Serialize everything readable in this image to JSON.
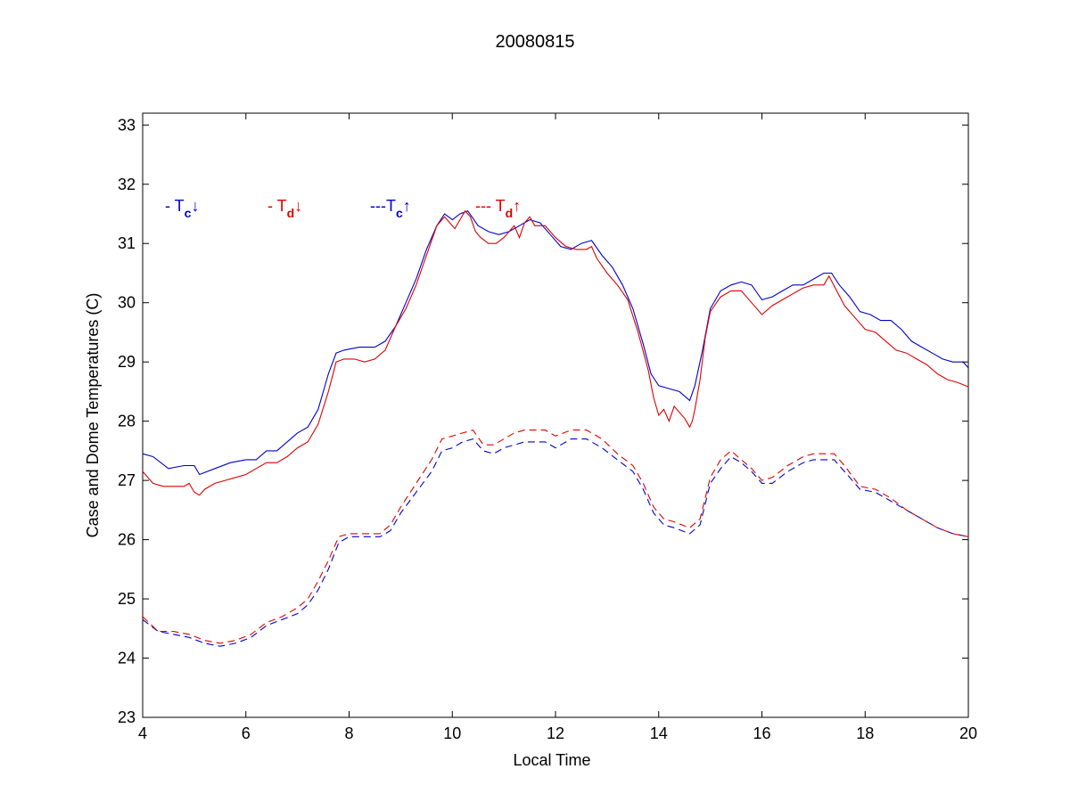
{
  "chart_data": {
    "type": "line",
    "title": "20080815",
    "xlabel": "Local Time",
    "ylabel": "Case and Dome Temperatures (C)",
    "xlim": [
      4,
      20
    ],
    "ylim": [
      23,
      33.2
    ],
    "xticks": [
      4,
      6,
      8,
      10,
      12,
      14,
      16,
      18,
      20
    ],
    "yticks": [
      23,
      24,
      25,
      26,
      27,
      28,
      29,
      30,
      31,
      32,
      33
    ],
    "grid": false,
    "legend_position": "top-left",
    "legend": [
      {
        "prefix": "- T",
        "sub": "c",
        "arrow": "↓",
        "color": "#0000cc",
        "series": 0
      },
      {
        "prefix": "- T",
        "sub": "d",
        "arrow": "↓",
        "color": "#dd0000",
        "series": 1
      },
      {
        "prefix": "---T",
        "sub": "c",
        "arrow": "↑",
        "color": "#0000cc",
        "series": 2
      },
      {
        "prefix": "--- T",
        "sub": "d",
        "arrow": "↑",
        "color": "#dd0000",
        "series": 3
      }
    ],
    "series": [
      {
        "color": "#0000cc",
        "dash": "solid",
        "x": [
          4.0,
          4.2,
          4.5,
          4.8,
          5.0,
          5.1,
          5.4,
          5.7,
          6.0,
          6.2,
          6.4,
          6.6,
          6.8,
          7.0,
          7.2,
          7.4,
          7.6,
          7.75,
          7.9,
          8.2,
          8.5,
          8.7,
          8.9,
          9.1,
          9.3,
          9.5,
          9.7,
          9.85,
          10.0,
          10.15,
          10.3,
          10.5,
          10.7,
          10.9,
          11.1,
          11.3,
          11.5,
          11.7,
          11.9,
          12.1,
          12.3,
          12.5,
          12.7,
          12.9,
          13.1,
          13.3,
          13.5,
          13.7,
          13.85,
          14.0,
          14.2,
          14.4,
          14.6,
          14.7,
          14.85,
          15.0,
          15.2,
          15.4,
          15.6,
          15.8,
          16.0,
          16.2,
          16.4,
          16.6,
          16.8,
          17.0,
          17.2,
          17.35,
          17.5,
          17.7,
          17.9,
          18.1,
          18.3,
          18.5,
          18.7,
          18.9,
          19.1,
          19.3,
          19.5,
          19.7,
          19.9,
          20.0
        ],
        "y": [
          27.45,
          27.4,
          27.2,
          27.25,
          27.25,
          27.1,
          27.2,
          27.3,
          27.35,
          27.35,
          27.5,
          27.5,
          27.65,
          27.8,
          27.9,
          28.2,
          28.8,
          29.15,
          29.2,
          29.25,
          29.25,
          29.35,
          29.6,
          30.0,
          30.4,
          30.9,
          31.3,
          31.5,
          31.4,
          31.5,
          31.55,
          31.3,
          31.2,
          31.15,
          31.2,
          31.3,
          31.4,
          31.35,
          31.15,
          30.95,
          30.9,
          31.0,
          31.05,
          30.8,
          30.6,
          30.3,
          29.9,
          29.3,
          28.8,
          28.6,
          28.55,
          28.5,
          28.35,
          28.6,
          29.2,
          29.9,
          30.2,
          30.3,
          30.35,
          30.3,
          30.05,
          30.1,
          30.2,
          30.3,
          30.3,
          30.4,
          30.5,
          30.5,
          30.3,
          30.1,
          29.85,
          29.8,
          29.7,
          29.7,
          29.55,
          29.35,
          29.25,
          29.15,
          29.05,
          29.0,
          29.0,
          28.9
        ]
      },
      {
        "color": "#dd0000",
        "dash": "solid",
        "x": [
          4.0,
          4.2,
          4.4,
          4.6,
          4.8,
          4.9,
          5.0,
          5.1,
          5.2,
          5.4,
          5.6,
          5.8,
          6.0,
          6.2,
          6.4,
          6.6,
          6.8,
          7.0,
          7.2,
          7.4,
          7.6,
          7.75,
          7.9,
          8.1,
          8.3,
          8.5,
          8.7,
          8.9,
          9.1,
          9.3,
          9.5,
          9.7,
          9.85,
          9.95,
          10.05,
          10.15,
          10.25,
          10.35,
          10.45,
          10.55,
          10.7,
          10.85,
          11.0,
          11.1,
          11.2,
          11.3,
          11.4,
          11.5,
          11.6,
          11.8,
          12.0,
          12.2,
          12.4,
          12.6,
          12.7,
          12.8,
          13.0,
          13.2,
          13.4,
          13.6,
          13.8,
          13.9,
          14.0,
          14.1,
          14.2,
          14.3,
          14.4,
          14.5,
          14.6,
          14.65,
          14.7,
          14.8,
          14.9,
          15.0,
          15.2,
          15.4,
          15.6,
          15.8,
          16.0,
          16.2,
          16.4,
          16.6,
          16.8,
          17.0,
          17.2,
          17.3,
          17.45,
          17.6,
          17.8,
          18.0,
          18.2,
          18.4,
          18.6,
          18.8,
          19.0,
          19.2,
          19.4,
          19.6,
          19.8,
          20.0
        ],
        "y": [
          27.15,
          26.95,
          26.9,
          26.9,
          26.9,
          26.95,
          26.8,
          26.75,
          26.85,
          26.95,
          27.0,
          27.05,
          27.1,
          27.2,
          27.3,
          27.3,
          27.4,
          27.55,
          27.65,
          27.95,
          28.5,
          29.0,
          29.05,
          29.05,
          29.0,
          29.05,
          29.2,
          29.6,
          29.9,
          30.3,
          30.8,
          31.3,
          31.45,
          31.35,
          31.25,
          31.4,
          31.55,
          31.45,
          31.2,
          31.1,
          31.0,
          31.0,
          31.1,
          31.2,
          31.3,
          31.1,
          31.35,
          31.45,
          31.3,
          31.3,
          31.1,
          30.95,
          30.9,
          30.9,
          30.95,
          30.75,
          30.5,
          30.3,
          30.05,
          29.5,
          28.85,
          28.4,
          28.1,
          28.2,
          28.0,
          28.25,
          28.15,
          28.05,
          27.9,
          28.0,
          28.2,
          28.7,
          29.4,
          29.85,
          30.1,
          30.2,
          30.2,
          30.0,
          29.8,
          29.95,
          30.05,
          30.15,
          30.25,
          30.3,
          30.3,
          30.45,
          30.2,
          29.95,
          29.75,
          29.55,
          29.5,
          29.35,
          29.2,
          29.15,
          29.05,
          28.95,
          28.8,
          28.7,
          28.65,
          28.58
        ]
      },
      {
        "color": "#0000cc",
        "dash": "dashed",
        "x": [
          4.0,
          4.3,
          4.6,
          4.9,
          5.2,
          5.5,
          5.8,
          6.1,
          6.4,
          6.7,
          7.0,
          7.2,
          7.4,
          7.6,
          7.8,
          8.0,
          8.3,
          8.6,
          8.8,
          9.0,
          9.3,
          9.6,
          9.8,
          10.0,
          10.2,
          10.4,
          10.6,
          10.8,
          11.0,
          11.2,
          11.4,
          11.6,
          11.8,
          12.0,
          12.3,
          12.6,
          12.9,
          13.2,
          13.5,
          13.7,
          13.9,
          14.1,
          14.3,
          14.6,
          14.8,
          15.0,
          15.2,
          15.4,
          15.6,
          15.8,
          16.0,
          16.2,
          16.5,
          16.8,
          17.0,
          17.2,
          17.4,
          17.6,
          17.9,
          18.2,
          18.5,
          18.8,
          19.1,
          19.4,
          19.7,
          20.0
        ],
        "y": [
          24.65,
          24.45,
          24.4,
          24.35,
          24.25,
          24.2,
          24.25,
          24.35,
          24.55,
          24.65,
          24.75,
          24.9,
          25.15,
          25.5,
          25.95,
          26.05,
          26.05,
          26.05,
          26.15,
          26.45,
          26.8,
          27.15,
          27.5,
          27.55,
          27.65,
          27.7,
          27.5,
          27.45,
          27.55,
          27.6,
          27.65,
          27.65,
          27.65,
          27.55,
          27.7,
          27.7,
          27.55,
          27.35,
          27.15,
          26.85,
          26.45,
          26.25,
          26.2,
          26.1,
          26.25,
          26.95,
          27.2,
          27.4,
          27.3,
          27.15,
          26.95,
          26.95,
          27.15,
          27.3,
          27.35,
          27.35,
          27.35,
          27.15,
          26.85,
          26.8,
          26.65,
          26.5,
          26.35,
          26.2,
          26.1,
          26.05
        ]
      },
      {
        "color": "#dd0000",
        "dash": "dashed",
        "x": [
          4.0,
          4.3,
          4.6,
          4.9,
          5.2,
          5.5,
          5.8,
          6.1,
          6.4,
          6.7,
          7.0,
          7.2,
          7.4,
          7.6,
          7.8,
          8.0,
          8.3,
          8.6,
          8.8,
          9.0,
          9.3,
          9.6,
          9.8,
          10.0,
          10.2,
          10.4,
          10.6,
          10.8,
          11.0,
          11.2,
          11.4,
          11.6,
          11.8,
          12.0,
          12.3,
          12.6,
          12.9,
          13.2,
          13.5,
          13.7,
          13.9,
          14.1,
          14.3,
          14.6,
          14.8,
          15.0,
          15.2,
          15.4,
          15.6,
          15.8,
          16.0,
          16.2,
          16.5,
          16.8,
          17.0,
          17.2,
          17.4,
          17.6,
          17.9,
          18.2,
          18.5,
          18.8,
          19.1,
          19.4,
          19.7,
          20.0
        ],
        "y": [
          24.7,
          24.45,
          24.45,
          24.4,
          24.3,
          24.25,
          24.3,
          24.4,
          24.6,
          24.7,
          24.85,
          25.0,
          25.3,
          25.65,
          26.05,
          26.1,
          26.1,
          26.1,
          26.25,
          26.55,
          26.95,
          27.35,
          27.7,
          27.75,
          27.8,
          27.85,
          27.6,
          27.6,
          27.7,
          27.8,
          27.85,
          27.85,
          27.85,
          27.75,
          27.85,
          27.85,
          27.7,
          27.45,
          27.25,
          26.95,
          26.55,
          26.35,
          26.3,
          26.2,
          26.35,
          27.05,
          27.35,
          27.5,
          27.35,
          27.2,
          27.0,
          27.05,
          27.25,
          27.4,
          27.45,
          27.45,
          27.45,
          27.25,
          26.9,
          26.85,
          26.7,
          26.5,
          26.35,
          26.2,
          26.1,
          26.05
        ]
      }
    ]
  }
}
